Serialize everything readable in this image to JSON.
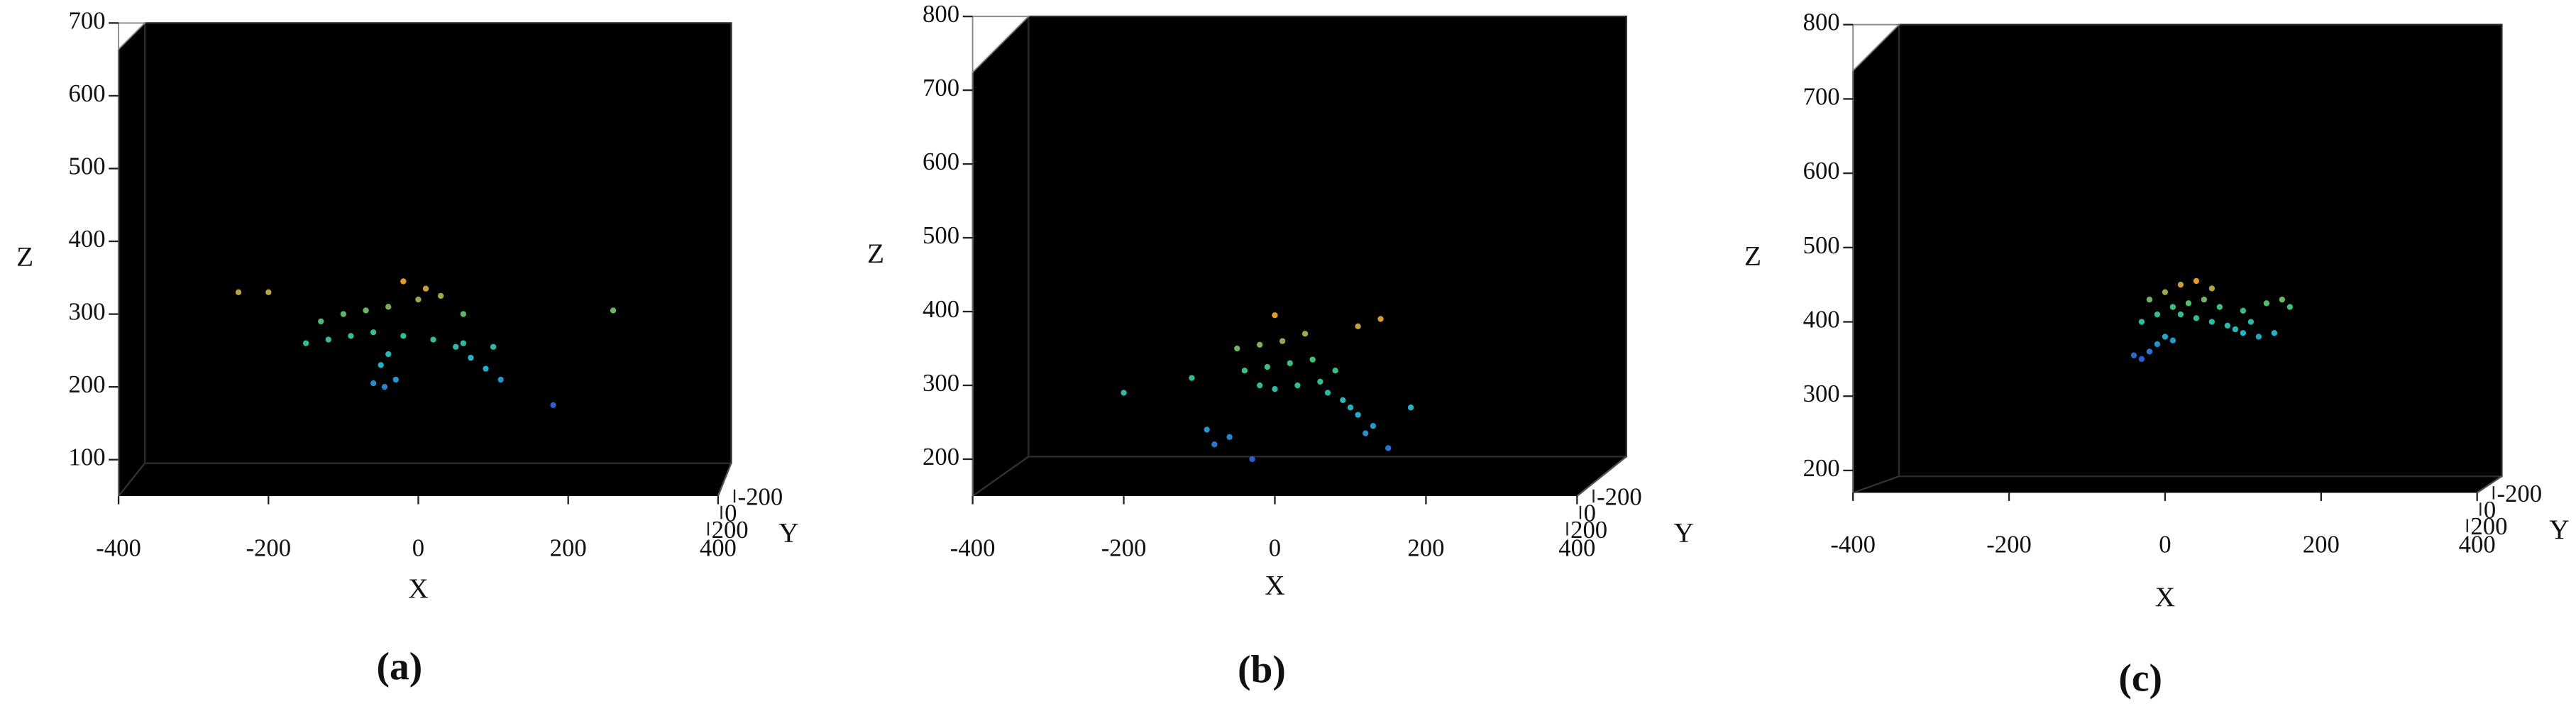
{
  "chart_data": [
    {
      "type": "scatter3d",
      "caption": "(a)",
      "xlabel": "X",
      "ylabel": "Y",
      "zlabel": "Z",
      "xlim": [
        -400,
        400
      ],
      "xticks": [
        -400,
        -200,
        0,
        200,
        400
      ],
      "yticks": [
        -200,
        0,
        200
      ],
      "zlim": [
        50,
        700
      ],
      "zticks": [
        100,
        200,
        300,
        400,
        500,
        600,
        700
      ],
      "colormap": [
        "#2a5fd0",
        "#22b4c8",
        "#3cc07a",
        "#e39a2c"
      ],
      "x": [
        -60,
        -45,
        -30,
        -50,
        -40,
        110,
        90,
        70,
        50,
        -150,
        -120,
        -90,
        -60,
        -20,
        20,
        60,
        100,
        -130,
        -100,
        -70,
        -40,
        0,
        30,
        60,
        -200,
        -20,
        10,
        260,
        -240,
        180
      ],
      "z": [
        205,
        200,
        210,
        230,
        245,
        210,
        225,
        240,
        255,
        260,
        265,
        270,
        275,
        270,
        265,
        260,
        255,
        290,
        300,
        305,
        310,
        320,
        325,
        300,
        330,
        345,
        335,
        305,
        330,
        175
      ]
    },
    {
      "type": "scatter3d",
      "caption": "(b)",
      "xlabel": "X",
      "ylabel": "Y",
      "zlabel": "Z",
      "xlim": [
        -400,
        400
      ],
      "xticks": [
        -400,
        -200,
        0,
        200,
        400
      ],
      "yticks": [
        -200,
        0,
        200
      ],
      "zlim": [
        150,
        800
      ],
      "zticks": [
        200,
        300,
        400,
        500,
        600,
        700,
        800
      ],
      "colormap": [
        "#2a5fd0",
        "#22b4c8",
        "#3cc07a",
        "#e39a2c"
      ],
      "x": [
        -80,
        -60,
        120,
        130,
        110,
        100,
        90,
        70,
        -20,
        0,
        30,
        60,
        -40,
        -10,
        20,
        50,
        80,
        -50,
        -20,
        10,
        40,
        0,
        -200,
        180,
        -30,
        110,
        150,
        -110,
        -90,
        140
      ],
      "z": [
        220,
        230,
        235,
        245,
        260,
        270,
        280,
        290,
        300,
        295,
        300,
        305,
        320,
        325,
        330,
        335,
        320,
        350,
        355,
        360,
        370,
        395,
        290,
        270,
        200,
        380,
        215,
        310,
        240,
        390
      ]
    },
    {
      "type": "scatter3d",
      "caption": "(c)",
      "xlabel": "X",
      "ylabel": "Y",
      "zlabel": "Z",
      "xlim": [
        -400,
        400
      ],
      "xticks": [
        -400,
        -200,
        0,
        200,
        400
      ],
      "yticks": [
        -200,
        0,
        200
      ],
      "zlim": [
        170,
        800
      ],
      "zticks": [
        200,
        300,
        400,
        500,
        600,
        700,
        800
      ],
      "colormap": [
        "#2a5fd0",
        "#22b4c8",
        "#3cc07a",
        "#e39a2c"
      ],
      "x": [
        -40,
        -30,
        -20,
        -10,
        0,
        10,
        120,
        140,
        100,
        80,
        60,
        40,
        20,
        -30,
        -10,
        10,
        30,
        50,
        70,
        100,
        130,
        150,
        0,
        20,
        40,
        60,
        -20,
        110,
        90,
        160
      ],
      "z": [
        355,
        350,
        360,
        370,
        380,
        375,
        380,
        385,
        385,
        395,
        400,
        405,
        410,
        400,
        410,
        420,
        425,
        430,
        420,
        415,
        425,
        430,
        440,
        450,
        455,
        445,
        430,
        400,
        390,
        420
      ]
    }
  ]
}
